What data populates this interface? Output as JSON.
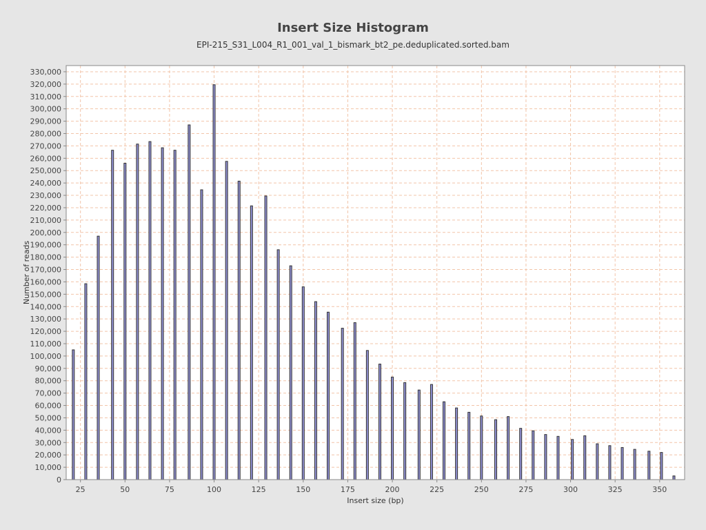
{
  "chart_data": {
    "type": "bar",
    "title": "Insert Size Histogram",
    "subtitle": "EPI-215_S31_L004_R1_001_val_1_bismark_bt2_pe.deduplicated.sorted.bam",
    "xlabel": "Insert size (bp)",
    "ylabel": "Number of reads",
    "xlim": [
      17,
      364
    ],
    "ylim": [
      0,
      335000
    ],
    "x_ticks": [
      25,
      50,
      75,
      100,
      125,
      150,
      175,
      200,
      225,
      250,
      275,
      300,
      325,
      350
    ],
    "x_tick_labels": [
      "25",
      "50",
      "75",
      "100",
      "125",
      "150",
      "175",
      "200",
      "225",
      "250",
      "275",
      "300",
      "325",
      "350"
    ],
    "y_ticks": [
      0,
      10000,
      20000,
      30000,
      40000,
      50000,
      60000,
      70000,
      80000,
      90000,
      100000,
      110000,
      120000,
      130000,
      140000,
      150000,
      160000,
      170000,
      180000,
      190000,
      200000,
      210000,
      220000,
      230000,
      240000,
      250000,
      260000,
      270000,
      280000,
      290000,
      300000,
      310000,
      320000,
      330000
    ],
    "y_tick_labels": [
      "0",
      "10,000",
      "20,000",
      "30,000",
      "40,000",
      "50,000",
      "60,000",
      "70,000",
      "80,000",
      "90,000",
      "100,000",
      "110,000",
      "120,000",
      "130,000",
      "140,000",
      "150,000",
      "160,000",
      "170,000",
      "180,000",
      "190,000",
      "200,000",
      "210,000",
      "220,000",
      "230,000",
      "240,000",
      "250,000",
      "260,000",
      "270,000",
      "280,000",
      "290,000",
      "300,000",
      "310,000",
      "320,000",
      "330,000"
    ],
    "grid": true,
    "legend": "none",
    "x": [
      21,
      28,
      35,
      43,
      50,
      57,
      64,
      71,
      78,
      86,
      93,
      100,
      107,
      114,
      121,
      129,
      136,
      143,
      150,
      157,
      164,
      172,
      179,
      186,
      193,
      200,
      207,
      215,
      222,
      229,
      236,
      243,
      250,
      258,
      265,
      272,
      279,
      286,
      293,
      301,
      308,
      315,
      322,
      329,
      336,
      344,
      351,
      358
    ],
    "values": [
      105000,
      158500,
      197000,
      266500,
      256000,
      271500,
      273500,
      268500,
      266500,
      287000,
      234500,
      319500,
      257500,
      241500,
      221500,
      229500,
      186000,
      173000,
      156000,
      144000,
      135500,
      122500,
      127000,
      104500,
      93500,
      83000,
      78500,
      72500,
      77000,
      63000,
      58000,
      54500,
      51500,
      48500,
      51000,
      41500,
      39500,
      36500,
      35000,
      32500,
      35500,
      29000,
      27500,
      26000,
      24500,
      23000,
      22000,
      3000
    ],
    "colors": {
      "bar_fill": "#8f8fd0",
      "bar_stroke": "#333333",
      "grid": "#f2c4a8",
      "plot_bg": "#ffffff",
      "page_bg": "#e6e6e6"
    }
  }
}
